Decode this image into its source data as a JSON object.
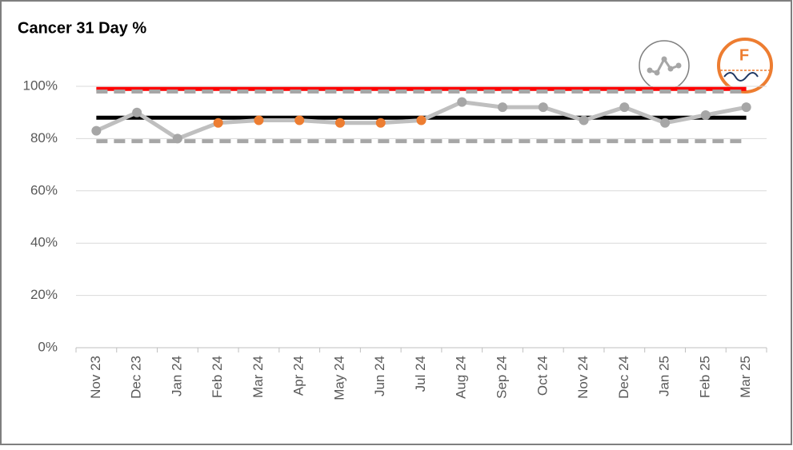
{
  "chart_data": {
    "type": "spc",
    "title": "Cancer 31 Day %",
    "categories": [
      "Nov 23",
      "Dec 23",
      "Jan 24",
      "Feb 24",
      "Mar 24",
      "Apr 24",
      "May 24",
      "Jun 24",
      "Jul 24",
      "Aug 24",
      "Sep 24",
      "Oct 24",
      "Nov 24",
      "Dec 24",
      "Jan 25",
      "Feb 25",
      "Mar 25"
    ],
    "series": [
      {
        "color": "#bfbfbf",
        "values": [
          83,
          90,
          80,
          86,
          87,
          87,
          86,
          86,
          87,
          94,
          92,
          92,
          87,
          92,
          86,
          89,
          92
        ],
        "marker_colors": [
          "#a6a6a6",
          "#a6a6a6",
          "#a6a6a6",
          "#ed7d31",
          "#ed7d31",
          "#ed7d31",
          "#ed7d31",
          "#ed7d31",
          "#ed7d31",
          "#a6a6a6",
          "#a6a6a6",
          "#a6a6a6",
          "#a6a6a6",
          "#a6a6a6",
          "#a6a6a6",
          "#a6a6a6",
          "#a6a6a6"
        ]
      }
    ],
    "target": 99,
    "target_color": "#ff0000",
    "mean": 88,
    "mean_color": "#000000",
    "ucl": 98,
    "lcl": 79,
    "limit_color": "#a6a6a6",
    "ylim": [
      0,
      100
    ],
    "yticks": [
      {
        "value": 0,
        "label": "0%"
      },
      {
        "value": 20,
        "label": "20%"
      },
      {
        "value": 40,
        "label": "40%"
      },
      {
        "value": 60,
        "label": "60%"
      },
      {
        "value": 80,
        "label": "80%"
      },
      {
        "value": 100,
        "label": "100%"
      }
    ],
    "grid": true,
    "assurance_icon_label": "F"
  }
}
